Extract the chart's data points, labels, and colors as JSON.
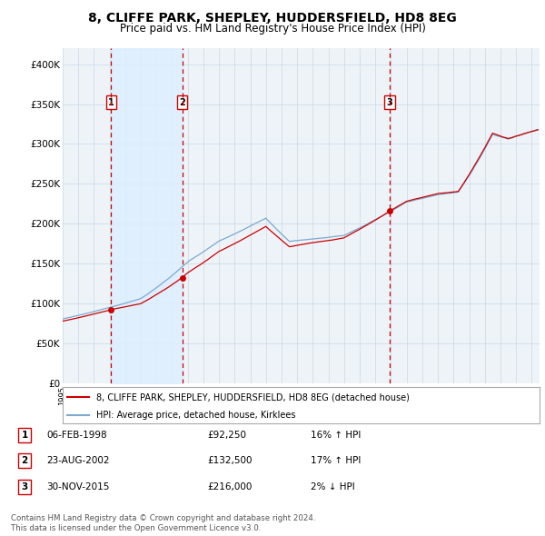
{
  "title_line1": "8, CLIFFE PARK, SHEPLEY, HUDDERSFIELD, HD8 8EG",
  "title_line2": "Price paid vs. HM Land Registry's House Price Index (HPI)",
  "ylabel_ticks": [
    "£0",
    "£50K",
    "£100K",
    "£150K",
    "£200K",
    "£250K",
    "£300K",
    "£350K",
    "£400K"
  ],
  "ytick_values": [
    0,
    50000,
    100000,
    150000,
    200000,
    250000,
    300000,
    350000,
    400000
  ],
  "ylim": [
    0,
    420000
  ],
  "xlim_start": 1995.0,
  "xlim_end": 2025.5,
  "sales": [
    {
      "num": 1,
      "date": "06-FEB-1998",
      "year": 1998.1,
      "price": 92250,
      "pct": "16%",
      "dir": "↑"
    },
    {
      "num": 2,
      "date": "23-AUG-2002",
      "year": 2002.65,
      "price": 132500,
      "pct": "17%",
      "dir": "↑"
    },
    {
      "num": 3,
      "date": "30-NOV-2015",
      "year": 2015.92,
      "price": 216000,
      "pct": "2%",
      "dir": "↓"
    }
  ],
  "legend_line1": "8, CLIFFE PARK, SHEPLEY, HUDDERSFIELD, HD8 8EG (detached house)",
  "legend_line2": "HPI: Average price, detached house, Kirklees",
  "red_color": "#cc0000",
  "blue_color": "#7aaad0",
  "shaded_region_color": "#ddeeff",
  "grid_color": "#c8d8e8",
  "background_color": "#eef3f8",
  "footer_line1": "Contains HM Land Registry data © Crown copyright and database right 2024.",
  "footer_line2": "This data is licensed under the Open Government Licence v3.0."
}
